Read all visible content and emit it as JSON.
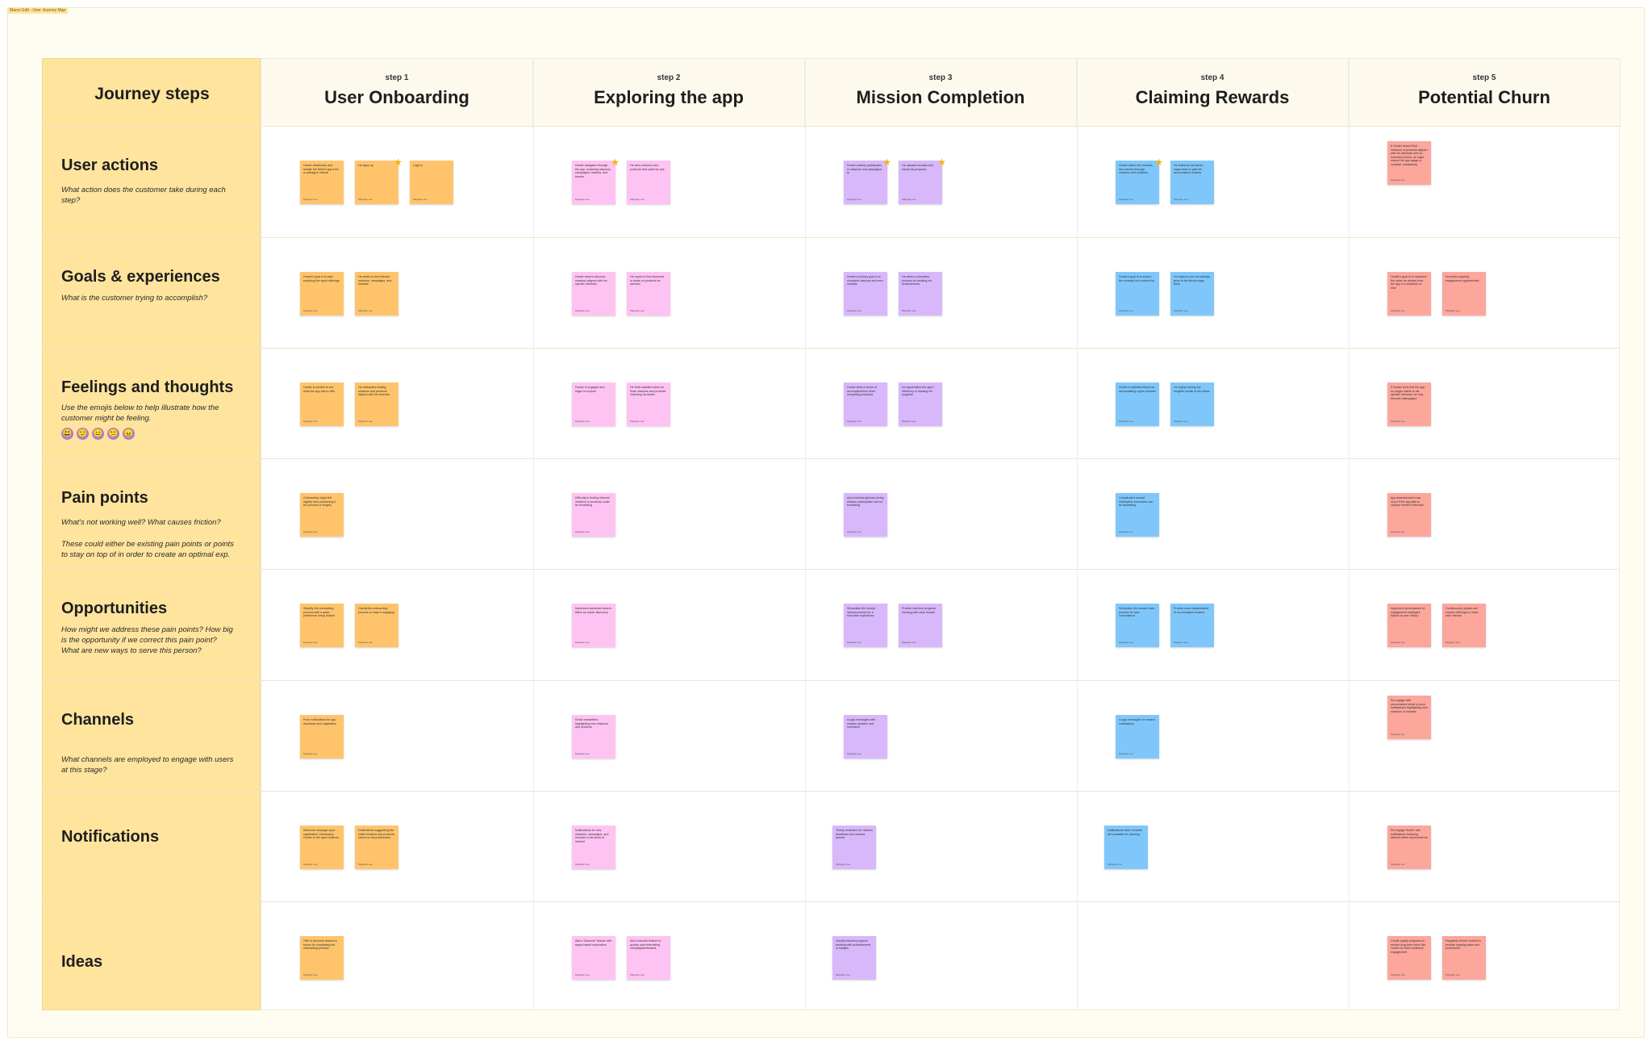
{
  "frame": {
    "tag": "Macro Edit - User Journey Map"
  },
  "colors": {
    "orange": "#ffc46b",
    "pink": "#fec3f2",
    "purple": "#d8b7fb",
    "blue": "#7fc7fb",
    "red": "#fca69c"
  },
  "journey_title": "Journey steps",
  "steps": [
    {
      "label": "step 1",
      "title": "User Onboarding"
    },
    {
      "label": "step 2",
      "title": "Exploring the app"
    },
    {
      "label": "step 3",
      "title": "Mission Completion"
    },
    {
      "label": "step 4",
      "title": "Claiming Rewards"
    },
    {
      "label": "step 5",
      "title": "Potential Churn"
    }
  ],
  "rows": [
    {
      "title": "User actions",
      "subtitle": "What action does the customer take during each step?"
    },
    {
      "title": "Goals & experiences",
      "subtitle": "What is the customer trying to accomplish?"
    },
    {
      "title": "Feelings and thoughts",
      "subtitle": "Use the emojis below to help illustrate how the customer might be feeling.",
      "emojis": [
        "😃",
        "🙂",
        "😐",
        "🙁",
        "😠"
      ]
    },
    {
      "title": "Pain points",
      "subtitle": "What's not working well? What causes friction?",
      "subtitle2": "These could either be existing pain points or points to stay on top of in order to create an optimal exp."
    },
    {
      "title": "Opportunities",
      "subtitle": "How might we address these pain points? How big is the opportunity if we correct this pain point? What are new ways to serve this person?"
    },
    {
      "title": "Channels",
      "subtitle": "What channels are employed to engage with users at this stage?"
    },
    {
      "title": "Notifications",
      "subtitle": ""
    },
    {
      "title": "Ideas",
      "subtitle": ""
    }
  ],
  "stickies": [
    {
      "row": 0,
      "col": 0,
      "slot": 0,
      "color": "orange",
      "text": "Hunter downloads and installs the BetOX app from a colleague referral",
      "author": "Margaret Lee"
    },
    {
      "row": 0,
      "col": 0,
      "slot": 1,
      "color": "orange",
      "text": "He signs up",
      "author": "Margaret Lee",
      "star": true
    },
    {
      "row": 0,
      "col": 0,
      "slot": 2,
      "color": "orange",
      "text": "Logs in",
      "author": "Margaret Lee"
    },
    {
      "row": 0,
      "col": 1,
      "slot": 0,
      "color": "pink",
      "text": "Hunter navigates through the app, exploring missions, campaigns, rewards, and brands",
      "author": "Margaret Lee",
      "star": true
    },
    {
      "row": 0,
      "col": 1,
      "slot": 1,
      "color": "pink",
      "text": "He sees missions and products that catch his eye",
      "author": "Margaret Lee"
    },
    {
      "row": 0,
      "col": 2,
      "slot": 0,
      "color": "purple",
      "text": "Hunter actively participates in missions and campaigns to",
      "author": "Margaret Lee",
      "star": true
    },
    {
      "row": 0,
      "col": 2,
      "slot": 1,
      "color": "purple",
      "text": "He uploads receipts and tracks his progress",
      "author": "Margaret Lee",
      "star": true
    },
    {
      "row": 0,
      "col": 3,
      "slot": 0,
      "color": "blue",
      "text": "Hunter claims the rewards he's earned through missions and activities",
      "author": "Margaret Lee",
      "star": true
    },
    {
      "row": 0,
      "col": 3,
      "slot": 1,
      "color": "blue",
      "text": "He redeems his bitcoin wage bank or gets his accumulated rewards",
      "author": "Margaret Lee"
    },
    {
      "row": 0,
      "col": 4,
      "slot": 0,
      "color": "red",
      "text": "If Hunter doesn't find missions or products aligned with his interests over an extended period, he might reduce his app usage or consider uninstalling",
      "author": "Margaret Lee",
      "high": true
    },
    {
      "row": 1,
      "col": 0,
      "slot": 0,
      "color": "orange",
      "text": "Hunter's goal is to start exploring the app's offerings",
      "author": "Margaret Lee"
    },
    {
      "row": 1,
      "col": 0,
      "slot": 1,
      "color": "orange",
      "text": "He seeks to find relevant missions, campaigns, and rewards",
      "author": "Margaret Lee"
    },
    {
      "row": 1,
      "col": 1,
      "slot": 0,
      "color": "pink",
      "text": "Hunter aims to discover missions aligned with his specific interests",
      "author": "Margaret Lee"
    },
    {
      "row": 1,
      "col": 1,
      "slot": 1,
      "color": "pink",
      "text": "He hopes to find discounts or deals on products he admires",
      "author": "Margaret Lee"
    },
    {
      "row": 1,
      "col": 2,
      "slot": 0,
      "color": "purple",
      "text": "Hunter's primary goal is to complete missions and earn rewards",
      "author": "Margaret Lee"
    },
    {
      "row": 1,
      "col": 2,
      "slot": 1,
      "color": "purple",
      "text": "He seeks a seamless process for tracking his achievements",
      "author": "Margaret Lee"
    },
    {
      "row": 1,
      "col": 3,
      "slot": 0,
      "color": "blue",
      "text": "Hunter's goal is to secure the rewards he's worked for",
      "author": "Margaret Lee"
    },
    {
      "row": 1,
      "col": 3,
      "slot": 1,
      "color": "blue",
      "text": "He hopes to see his savings grow in his bitcoin wage bank",
      "author": "Margaret Lee"
    },
    {
      "row": 1,
      "col": 4,
      "slot": 0,
      "color": "red",
      "text": "Hunter's goal is to maximize the value he derives from the app in a minimum of time",
      "author": "Margaret Lee"
    },
    {
      "row": 1,
      "col": 4,
      "slot": 1,
      "color": "red",
      "text": "He seeks ongoing engagement opportunities",
      "author": "Margaret Lee"
    },
    {
      "row": 2,
      "col": 0,
      "slot": 0,
      "color": "orange",
      "text": "Hunter is excited to see what the app has to offer",
      "author": "Margaret Lee"
    },
    {
      "row": 2,
      "col": 0,
      "slot": 1,
      "color": "orange",
      "text": "He anticipates finding missions and products aligned with his interests",
      "author": "Margaret Lee"
    },
    {
      "row": 2,
      "col": 1,
      "slot": 0,
      "color": "pink",
      "text": "Hunter is engaged and eager to explore",
      "author": "Margaret Lee"
    },
    {
      "row": 2,
      "col": 1,
      "slot": 1,
      "color": "pink",
      "text": "He feels satisfied when he finds missions and products matching his tastes",
      "author": "Margaret Lee"
    },
    {
      "row": 2,
      "col": 2,
      "slot": 0,
      "color": "purple",
      "text": "Hunter feels a sense of accomplishment when completing missions",
      "author": "Margaret Lee"
    },
    {
      "row": 2,
      "col": 2,
      "slot": 1,
      "color": "purple",
      "text": "He appreciates the app's efficiency in tracking his progress",
      "author": "Margaret Lee"
    },
    {
      "row": 2,
      "col": 3,
      "slot": 0,
      "color": "blue",
      "text": "Hunter is satisfied about his accumulating crypto rewards",
      "author": "Margaret Lee"
    },
    {
      "row": 2,
      "col": 3,
      "slot": 1,
      "color": "blue",
      "text": "He enjoys seeing the tangible results of his efforts",
      "author": "Margaret Lee"
    },
    {
      "row": 2,
      "col": 4,
      "slot": 0,
      "color": "red",
      "text": "If Hunter feels that the app no longer caters to his specific interests, he may become disengaged",
      "author": "Margaret Lee"
    },
    {
      "row": 3,
      "col": 0,
      "slot": 0,
      "color": "orange",
      "text": "Onboarding might feel slightly time-consuming if the process is lengthy",
      "author": "Margaret Lee"
    },
    {
      "row": 3,
      "col": 1,
      "slot": 0,
      "color": "pink",
      "text": "Difficulty in finding relevant missions or products could be frustrating",
      "author": "Margaret Lee"
    },
    {
      "row": 3,
      "col": 2,
      "slot": 0,
      "color": "purple",
      "text": "Any technical glitches during mission participation can be frustrating",
      "author": "Margaret Lee"
    },
    {
      "row": 3,
      "col": 3,
      "slot": 0,
      "color": "blue",
      "text": "Complicated reward redemption processes can be frustrating",
      "author": "Margaret Lee"
    },
    {
      "row": 3,
      "col": 4,
      "slot": 0,
      "color": "red",
      "text": "App abandonment may occur if the app fails to capture Hunter's interests",
      "author": "Margaret Lee"
    },
    {
      "row": 4,
      "col": 0,
      "slot": 0,
      "color": "orange",
      "text": "Simplify the onboarding process with a quick preference setup feature",
      "author": "Margaret Lee"
    },
    {
      "row": 4,
      "col": 0,
      "slot": 1,
      "color": "orange",
      "text": "Gamify the onboarding process to make it engaging",
      "author": "Margaret Lee"
    },
    {
      "row": 4,
      "col": 1,
      "slot": 0,
      "color": "pink",
      "text": "Implement advanced search filters for easier discovery",
      "author": "Margaret Lee"
    },
    {
      "row": 4,
      "col": 2,
      "slot": 0,
      "color": "purple",
      "text": "Streamline the receipt upload process for a smoother experience",
      "author": "Margaret Lee"
    },
    {
      "row": 4,
      "col": 2,
      "slot": 1,
      "color": "purple",
      "text": "Provide real-time progress tracking with clear visuals",
      "author": "Margaret Lee"
    },
    {
      "row": 4,
      "col": 3,
      "slot": 0,
      "color": "blue",
      "text": "Streamline the reward claim process for user convenience",
      "author": "Margaret Lee"
    },
    {
      "row": 4,
      "col": 3,
      "slot": 1,
      "color": "blue",
      "text": "Provide clear visualizations of accumulated rewards",
      "author": "Margaret Lee"
    },
    {
      "row": 4,
      "col": 4,
      "slot": 0,
      "color": "red",
      "text": "Implement personalized re-engagement strategies based on user history",
      "author": "Margaret Lee"
    },
    {
      "row": 4,
      "col": 4,
      "slot": 1,
      "color": "red",
      "text": "Continuously update and expand offerings to retain user interest",
      "author": "Margaret Lee"
    },
    {
      "row": 5,
      "col": 0,
      "slot": 0,
      "color": "orange",
      "text": "Push notifications for app download and registration",
      "author": "Margaret Lee"
    },
    {
      "row": 5,
      "col": 1,
      "slot": 0,
      "color": "pink",
      "text": "Email newsletters highlighting new missions and products",
      "author": "Margaret Lee"
    },
    {
      "row": 5,
      "col": 2,
      "slot": 0,
      "color": "purple",
      "text": "In-app messages with mission updates and reminders",
      "author": "Margaret Lee"
    },
    {
      "row": 5,
      "col": 3,
      "slot": 0,
      "color": "blue",
      "text": "In-app messages for reward notifications",
      "author": "Margaret Lee"
    },
    {
      "row": 5,
      "col": 4,
      "slot": 0,
      "color": "red",
      "text": "Re-engage with personalized email or push notifications highlighting new missions or rewards",
      "author": "Margaret Lee",
      "high": true
    },
    {
      "row": 6,
      "col": 0,
      "slot": 0,
      "color": "orange",
      "text": "Welcome message upon registration, introducing Hunter to the app's features",
      "author": "Margaret Lee"
    },
    {
      "row": 6,
      "col": 0,
      "slot": 1,
      "color": "orange",
      "text": "Notifications suggesting the initial missions and products based on his preferences",
      "author": "Margaret Lee"
    },
    {
      "row": 6,
      "col": 1,
      "slot": 0,
      "color": "pink",
      "text": "Notifications for new missions, campaigns, and rewards in his areas of interest",
      "author": "Margaret Lee"
    },
    {
      "row": 6,
      "col": 2,
      "slot": 0,
      "color": "purple",
      "text": "Timely reminders for mission deadlines and rewards earned",
      "author": "Margaret Lee",
      "shift": true
    },
    {
      "row": 6,
      "col": 3,
      "slot": 0,
      "color": "blue",
      "text": "Notifications when rewards are available for claiming",
      "author": "Margaret Lee",
      "shift": true
    },
    {
      "row": 6,
      "col": 4,
      "slot": 0,
      "color": "red",
      "text": "Re-engage Hunter with notifications featuring tailored offers and incentives",
      "author": "Margaret Lee"
    },
    {
      "row": 7,
      "col": 0,
      "slot": 0,
      "color": "orange",
      "text": "Offer a personal reward or bonus for completing the onboarding process",
      "author": "Margaret Lee"
    },
    {
      "row": 7,
      "col": 1,
      "slot": 0,
      "color": "pink",
      "text": "Add a 'Discover' feature with swipe-based exploration",
      "author": "Margaret Lee"
    },
    {
      "row": 7,
      "col": 1,
      "slot": 1,
      "color": "pink",
      "text": "Add a favorite feature to quickly save interesting campaigns/missions",
      "author": "Margaret Lee"
    },
    {
      "row": 7,
      "col": 2,
      "slot": 0,
      "color": "purple",
      "text": "Gamify mission progress tracking with achievements or badges",
      "author": "Margaret Lee",
      "shift": true
    },
    {
      "row": 7,
      "col": 4,
      "slot": 0,
      "color": "red",
      "text": "Create loyalty programs to reward long-term users like Hunter for their continued engagement",
      "author": "Margaret Lee"
    },
    {
      "row": 7,
      "col": 4,
      "slot": 1,
      "color": "red",
      "text": "Regularly refresh content to provide ongoing value and promotions",
      "author": "Margaret Lee"
    }
  ]
}
